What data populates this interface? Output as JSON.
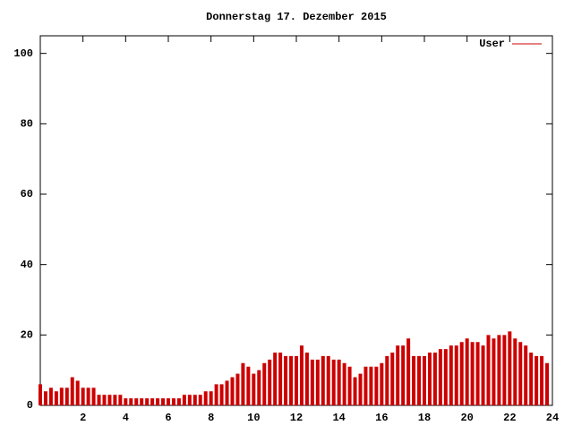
{
  "chart_data": {
    "type": "impulse",
    "title": "Donnerstag 17. Dezember 2015",
    "x": [
      0,
      0.25,
      0.5,
      0.75,
      1,
      1.25,
      1.5,
      1.75,
      2,
      2.25,
      2.5,
      2.75,
      3,
      3.25,
      3.5,
      3.75,
      4,
      4.25,
      4.5,
      4.75,
      5,
      5.25,
      5.5,
      5.75,
      6,
      6.25,
      6.5,
      6.75,
      7,
      7.25,
      7.5,
      7.75,
      8,
      8.25,
      8.5,
      8.75,
      9,
      9.25,
      9.5,
      9.75,
      10,
      10.25,
      10.5,
      10.75,
      11,
      11.25,
      11.5,
      11.75,
      12,
      12.25,
      12.5,
      12.75,
      13,
      13.25,
      13.5,
      13.75,
      14,
      14.25,
      14.5,
      14.75,
      15,
      15.25,
      15.5,
      15.75,
      16,
      16.25,
      16.5,
      16.75,
      17,
      17.25,
      17.5,
      17.75,
      18,
      18.25,
      18.5,
      18.75,
      19,
      19.25,
      19.5,
      19.75,
      20,
      20.25,
      20.5,
      20.75,
      21,
      21.25,
      21.5,
      21.75,
      22,
      22.25,
      22.5,
      22.75,
      23,
      23.25,
      23.5,
      23.75
    ],
    "series": [
      {
        "name": "User",
        "color": "#cc0000",
        "values": [
          6,
          4,
          5,
          4,
          5,
          5,
          8,
          7,
          5,
          5,
          5,
          3,
          3,
          3,
          3,
          3,
          2,
          2,
          2,
          2,
          2,
          2,
          2,
          2,
          2,
          2,
          2,
          3,
          3,
          3,
          3,
          4,
          4,
          6,
          6,
          7,
          8,
          9,
          12,
          11,
          9,
          10,
          12,
          13,
          15,
          15,
          14,
          14,
          14,
          17,
          15,
          13,
          13,
          14,
          14,
          13,
          13,
          12,
          11,
          8,
          9,
          11,
          11,
          11,
          12,
          14,
          15,
          17,
          17,
          19,
          14,
          14,
          14,
          15,
          15,
          16,
          16,
          17,
          17,
          18,
          19,
          18,
          18,
          17,
          20,
          19,
          20,
          20,
          21,
          19,
          18,
          17,
          15,
          14,
          14,
          12
        ]
      }
    ],
    "xlim": [
      0,
      24
    ],
    "xticks": [
      2,
      4,
      6,
      8,
      10,
      12,
      14,
      16,
      18,
      20,
      22,
      24
    ],
    "ylim": [
      0,
      105
    ],
    "yticks": [
      0,
      20,
      40,
      60,
      80,
      100
    ],
    "legend": "top-right"
  }
}
